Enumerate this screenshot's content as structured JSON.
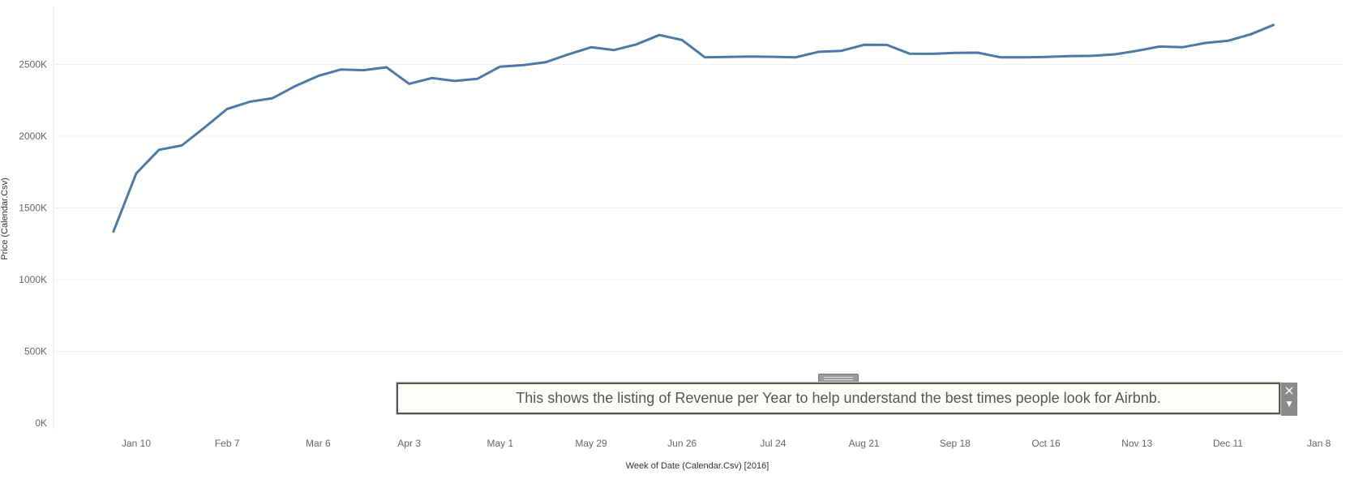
{
  "chart_data": {
    "type": "line",
    "title": "",
    "xlabel": "Week of Date (Calendar.Csv) [2016]",
    "ylabel": "Price (Calendar.Csv)",
    "ylim": [
      0,
      2800000
    ],
    "y_ticks": [
      {
        "value": 0,
        "label": "0K"
      },
      {
        "value": 500000,
        "label": "500K"
      },
      {
        "value": 1000000,
        "label": "1000K"
      },
      {
        "value": 1500000,
        "label": "1500K"
      },
      {
        "value": 2000000,
        "label": "2000K"
      },
      {
        "value": 2500000,
        "label": "2500K"
      }
    ],
    "x_ticks": [
      "Jan 10",
      "Feb 7",
      "Mar 6",
      "Apr 3",
      "May 1",
      "May 29",
      "Jun 26",
      "Jul 24",
      "Aug 21",
      "Sep 18",
      "Oct 16",
      "Nov 13",
      "Dec 11",
      "Jan 8"
    ],
    "grid": true,
    "color": "#4e79a7",
    "series": [
      {
        "x": [
          "2016-01-03",
          "2016-01-10",
          "2016-01-17",
          "2016-01-24",
          "2016-01-31",
          "2016-02-07",
          "2016-02-14",
          "2016-02-21",
          "2016-02-28",
          "2016-03-06",
          "2016-03-13",
          "2016-03-20",
          "2016-03-27",
          "2016-04-03",
          "2016-04-10",
          "2016-04-17",
          "2016-04-24",
          "2016-05-01",
          "2016-05-08",
          "2016-05-15",
          "2016-05-22",
          "2016-05-29",
          "2016-06-05",
          "2016-06-12",
          "2016-06-19",
          "2016-06-26",
          "2016-07-03",
          "2016-07-10",
          "2016-07-17",
          "2016-07-24",
          "2016-07-31",
          "2016-08-07",
          "2016-08-14",
          "2016-08-21",
          "2016-08-28",
          "2016-09-04",
          "2016-09-11",
          "2016-09-18",
          "2016-09-25",
          "2016-10-02",
          "2016-10-09",
          "2016-10-16",
          "2016-10-23",
          "2016-10-30",
          "2016-11-06",
          "2016-11-13",
          "2016-11-20",
          "2016-11-27",
          "2016-12-04",
          "2016-12-11",
          "2016-12-18",
          "2016-12-25"
        ],
        "values": [
          1335000,
          1740000,
          1905000,
          1935000,
          2060000,
          2190000,
          2240000,
          2265000,
          2350000,
          2420000,
          2465000,
          2460000,
          2480000,
          2365000,
          2405000,
          2385000,
          2400000,
          2485000,
          2495000,
          2515000,
          2570000,
          2620000,
          2600000,
          2640000,
          2705000,
          2670000,
          2550000,
          2552000,
          2555000,
          2553000,
          2550000,
          2588000,
          2595000,
          2637000,
          2636000,
          2575000,
          2574000,
          2580000,
          2582000,
          2550000,
          2550000,
          2552000,
          2558000,
          2560000,
          2570000,
          2595000,
          2625000,
          2620000,
          2650000,
          2665000,
          2710000,
          2775000
        ]
      }
    ]
  },
  "annotation": {
    "text": "This shows the listing of Revenue per Year to help understand the best times people look for Airbnb.",
    "close_icon": "×",
    "scroll_icon": "▼"
  }
}
